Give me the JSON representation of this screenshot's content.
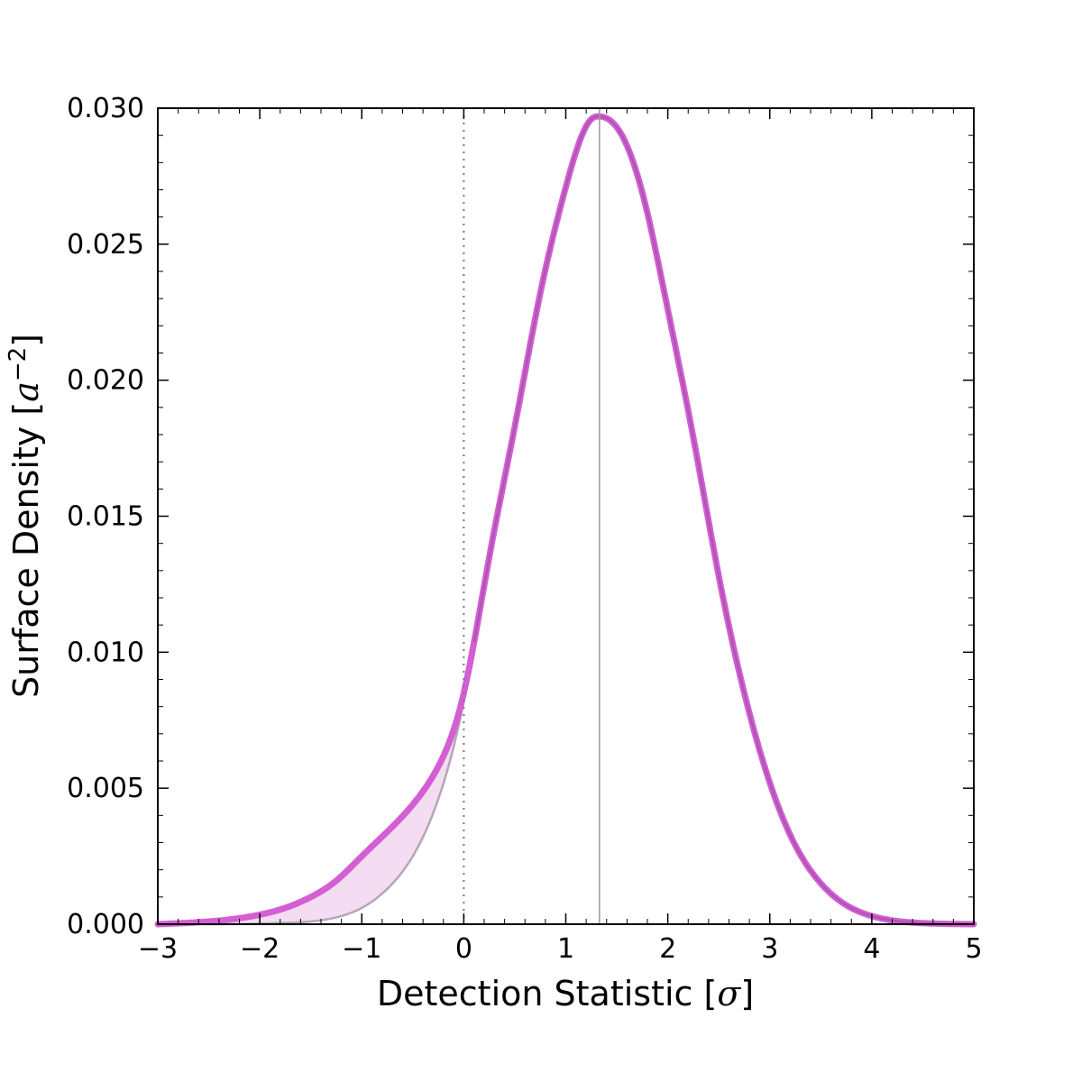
{
  "chart_data": {
    "type": "line",
    "xlabel": "Detection Statistic [σ]",
    "xlabel_text": "Detection Statistic [",
    "xlabel_symbol": "σ",
    "xlabel_close": "]",
    "ylabel": "Surface Density [a⁻²]",
    "ylabel_text": "Surface Density [",
    "ylabel_symbol": "a",
    "ylabel_exponent": "−2",
    "ylabel_close": "]",
    "xlim": [
      -3,
      5
    ],
    "ylim": [
      0,
      0.03
    ],
    "x_ticks": [
      -3,
      -2,
      -1,
      0,
      1,
      2,
      3,
      4,
      5
    ],
    "x_tick_labels": [
      "−3",
      "−2",
      "−1",
      "0",
      "1",
      "2",
      "3",
      "4",
      "5"
    ],
    "y_ticks": [
      0,
      0.005,
      0.01,
      0.015,
      0.02,
      0.025,
      0.03
    ],
    "y_tick_labels": [
      "0.000",
      "0.005",
      "0.010",
      "0.015",
      "0.020",
      "0.025",
      "0.030"
    ],
    "grid": false,
    "legend": "none",
    "reference_lines": {
      "dotted_vertical_x": 0,
      "solid_vertical_x": 1.33
    },
    "shaded_region": "between magenta curve and gray curve for x < 0",
    "series": [
      {
        "style": "thin gray line",
        "color": "#b0a8b4",
        "x": [
          -3.0,
          -2.5,
          -2.0,
          -1.75,
          -1.5,
          -1.25,
          -1.0,
          -0.75,
          -0.5,
          -0.25,
          0.0,
          0.25,
          0.5,
          0.75,
          1.0,
          1.25,
          1.33,
          1.5,
          1.75,
          2.0,
          2.25,
          2.5,
          2.75,
          3.0,
          3.25,
          3.5,
          3.75,
          4.0,
          4.5,
          5.0
        ],
        "y": [
          0.0,
          0.0,
          2e-05,
          5e-05,
          0.0001,
          0.00025,
          0.0006,
          0.0013,
          0.0025,
          0.0046,
          0.0082,
          0.0135,
          0.0183,
          0.0232,
          0.0271,
          0.0296,
          0.0297,
          0.0293,
          0.0269,
          0.0226,
          0.0179,
          0.0128,
          0.0085,
          0.0052,
          0.0029,
          0.0015,
          0.0007,
          0.0003,
          4e-05,
          0.0
        ]
      },
      {
        "style": "thick magenta line",
        "color": "#d35fd3",
        "x": [
          -3.0,
          -2.5,
          -2.0,
          -1.75,
          -1.5,
          -1.25,
          -1.0,
          -0.75,
          -0.5,
          -0.25,
          0.0,
          0.25,
          0.5,
          0.75,
          1.0,
          1.25,
          1.33,
          1.5,
          1.75,
          2.0,
          2.25,
          2.5,
          2.75,
          3.0,
          3.25,
          3.5,
          3.75,
          4.0,
          4.5,
          5.0
        ],
        "y": [
          0.0,
          0.0001,
          0.00035,
          0.0006,
          0.001,
          0.0016,
          0.0025,
          0.0034,
          0.0044,
          0.0058,
          0.0085,
          0.0135,
          0.0183,
          0.0232,
          0.0271,
          0.0296,
          0.0297,
          0.0293,
          0.0269,
          0.0226,
          0.0179,
          0.0128,
          0.0085,
          0.0052,
          0.0029,
          0.0015,
          0.0007,
          0.0003,
          4e-05,
          0.0
        ]
      }
    ]
  }
}
